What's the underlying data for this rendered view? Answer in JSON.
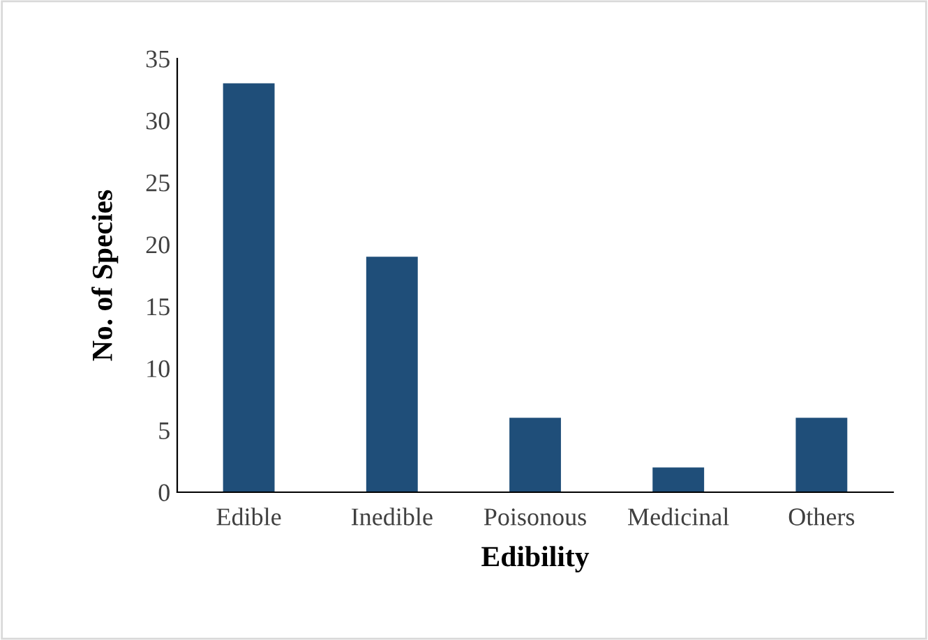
{
  "chart_data": {
    "type": "bar",
    "xlabel": "Edibility",
    "ylabel": "No. of Species",
    "categories": [
      "Edible",
      "Inedible",
      "Poisonous",
      "Medicinal",
      "Others"
    ],
    "values": [
      33,
      19,
      6,
      2,
      6
    ],
    "color": "#1f4e79",
    "ylim": [
      0,
      35
    ],
    "yticks": [
      0,
      5,
      10,
      15,
      20,
      25,
      30,
      35
    ],
    "grid": false,
    "legend": false
  }
}
